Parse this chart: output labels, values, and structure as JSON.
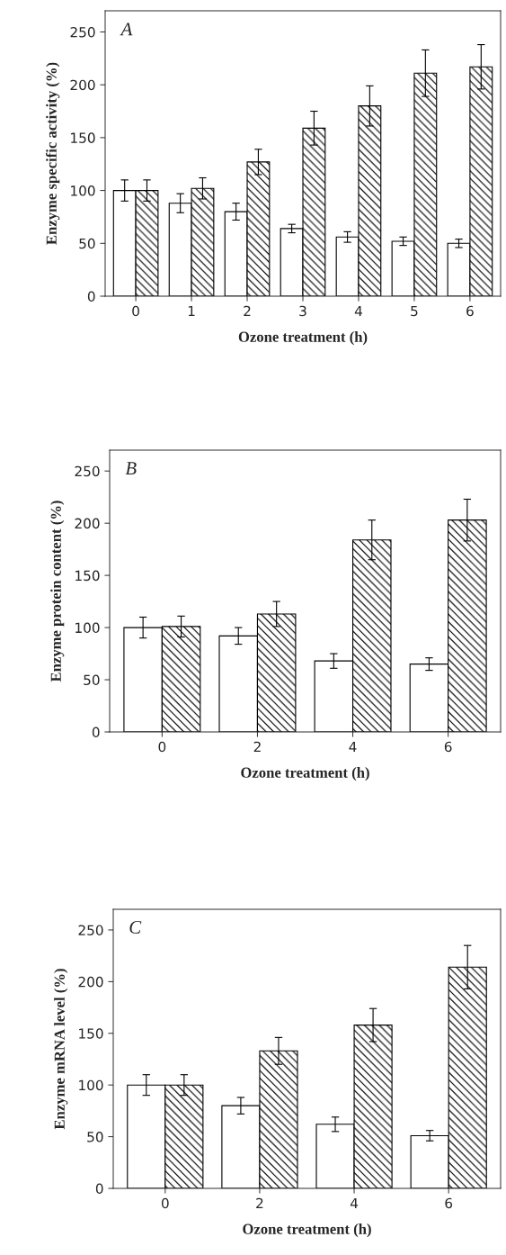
{
  "chart_data": [
    {
      "type": "bar",
      "categories": [
        "0",
        "1",
        "2",
        "3",
        "4",
        "5",
        "6"
      ],
      "xlabel": "Ozone treatment (h)",
      "ylabel": "Enzyme specific activity (%)",
      "annotations": [
        "A"
      ],
      "ylim": [
        0,
        270
      ],
      "yticks": [
        0,
        50,
        100,
        150,
        200,
        250
      ],
      "series": [
        {
          "color": "#ffffff",
          "values": [
            100,
            88,
            80,
            64,
            56,
            52,
            50
          ],
          "errors": [
            10,
            9,
            8,
            4,
            5,
            4,
            4
          ]
        },
        {
          "color": "#000000",
          "values": [
            100,
            102,
            127,
            159,
            180,
            211,
            217
          ],
          "errors": [
            10,
            10,
            12,
            16,
            19,
            22,
            21
          ]
        }
      ]
    },
    {
      "type": "bar",
      "categories": [
        "0",
        "2",
        "4",
        "6"
      ],
      "xlabel": "Ozone treatment (h)",
      "ylabel": "Enzyme protein content (%)",
      "annotations": [
        "B"
      ],
      "ylim": [
        0,
        270
      ],
      "yticks": [
        0,
        50,
        100,
        150,
        200,
        250
      ],
      "series": [
        {
          "color": "#ffffff",
          "values": [
            100,
            92,
            68,
            65
          ],
          "errors": [
            10,
            8,
            7,
            6
          ]
        },
        {
          "color": "#000000",
          "values": [
            101,
            113,
            184,
            203
          ],
          "errors": [
            10,
            12,
            19,
            20
          ]
        }
      ]
    },
    {
      "type": "bar",
      "categories": [
        "0",
        "2",
        "4",
        "6"
      ],
      "xlabel": "Ozone treatment (h)",
      "ylabel": "Enzyme mRNA level (%)",
      "annotations": [
        "C"
      ],
      "ylim": [
        0,
        270
      ],
      "yticks": [
        0,
        50,
        100,
        150,
        200,
        250
      ],
      "series": [
        {
          "color": "#ffffff",
          "values": [
            100,
            80,
            62,
            51
          ],
          "errors": [
            10,
            8,
            7,
            5
          ]
        },
        {
          "color": "#000000",
          "values": [
            100,
            133,
            158,
            214
          ],
          "errors": [
            10,
            13,
            16,
            21
          ]
        }
      ]
    }
  ]
}
